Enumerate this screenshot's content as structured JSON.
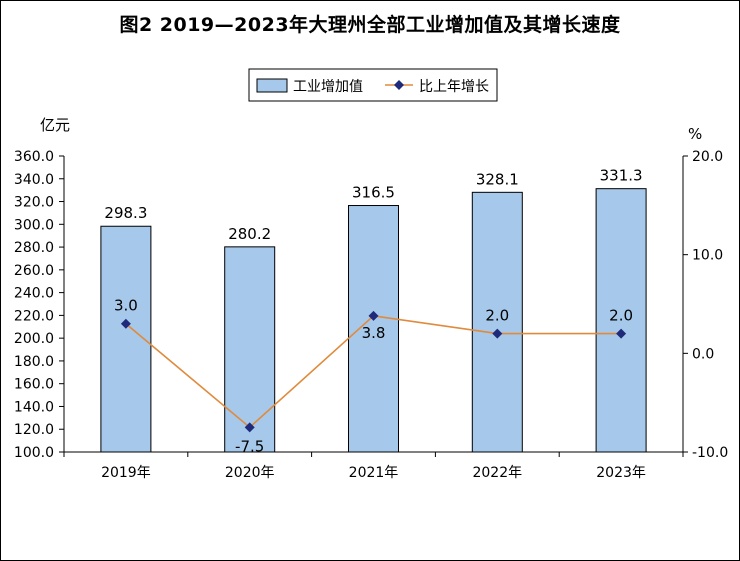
{
  "chart_data": {
    "type": "bar",
    "title": "图2  2019—2023年大理州全部工业增加值及其增长速度",
    "categories": [
      "2019年",
      "2020年",
      "2021年",
      "2022年",
      "2023年"
    ],
    "series": [
      {
        "name": "工业增加值",
        "type": "bar",
        "axis": "left",
        "values": [
          298.3,
          280.2,
          316.5,
          328.1,
          331.3
        ],
        "color": "#a6c8ea"
      },
      {
        "name": "比上年增长",
        "type": "line",
        "axis": "right",
        "values": [
          3.0,
          -7.5,
          3.8,
          2.0,
          2.0
        ],
        "color": "#e08a3c",
        "marker_color": "#1f2a7a"
      }
    ],
    "y_left": {
      "unit": "亿元",
      "min": 100,
      "max": 360,
      "step": 20
    },
    "y_right": {
      "unit": "%",
      "min": -10,
      "max": 20,
      "step": 10
    },
    "grid": false,
    "legend_position": "top-center"
  }
}
